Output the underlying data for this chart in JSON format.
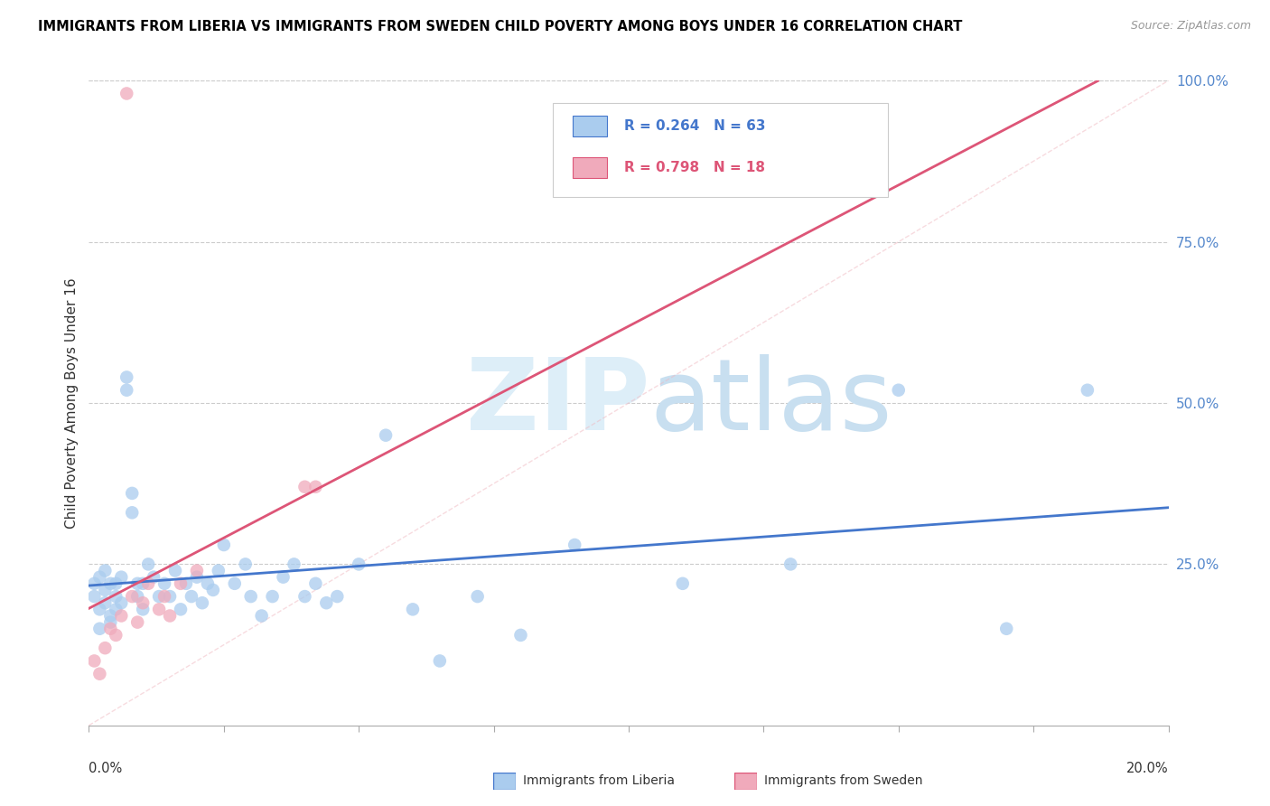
{
  "title": "IMMIGRANTS FROM LIBERIA VS IMMIGRANTS FROM SWEDEN CHILD POVERTY AMONG BOYS UNDER 16 CORRELATION CHART",
  "source": "Source: ZipAtlas.com",
  "ylabel": "Child Poverty Among Boys Under 16",
  "ylabel_right_ticks": [
    "100.0%",
    "75.0%",
    "50.0%",
    "25.0%"
  ],
  "ylabel_right_vals": [
    1.0,
    0.75,
    0.5,
    0.25
  ],
  "R_liberia": 0.264,
  "N_liberia": 63,
  "R_sweden": 0.798,
  "N_sweden": 18,
  "color_liberia": "#aaccee",
  "color_sweden": "#f0aabb",
  "color_liberia_line": "#4477cc",
  "color_sweden_line": "#dd5577",
  "watermark_zip": "ZIP",
  "watermark_atlas": "atlas",
  "watermark_color": "#ddeeff",
  "xlim": [
    0,
    0.2
  ],
  "ylim": [
    0,
    1.0
  ]
}
